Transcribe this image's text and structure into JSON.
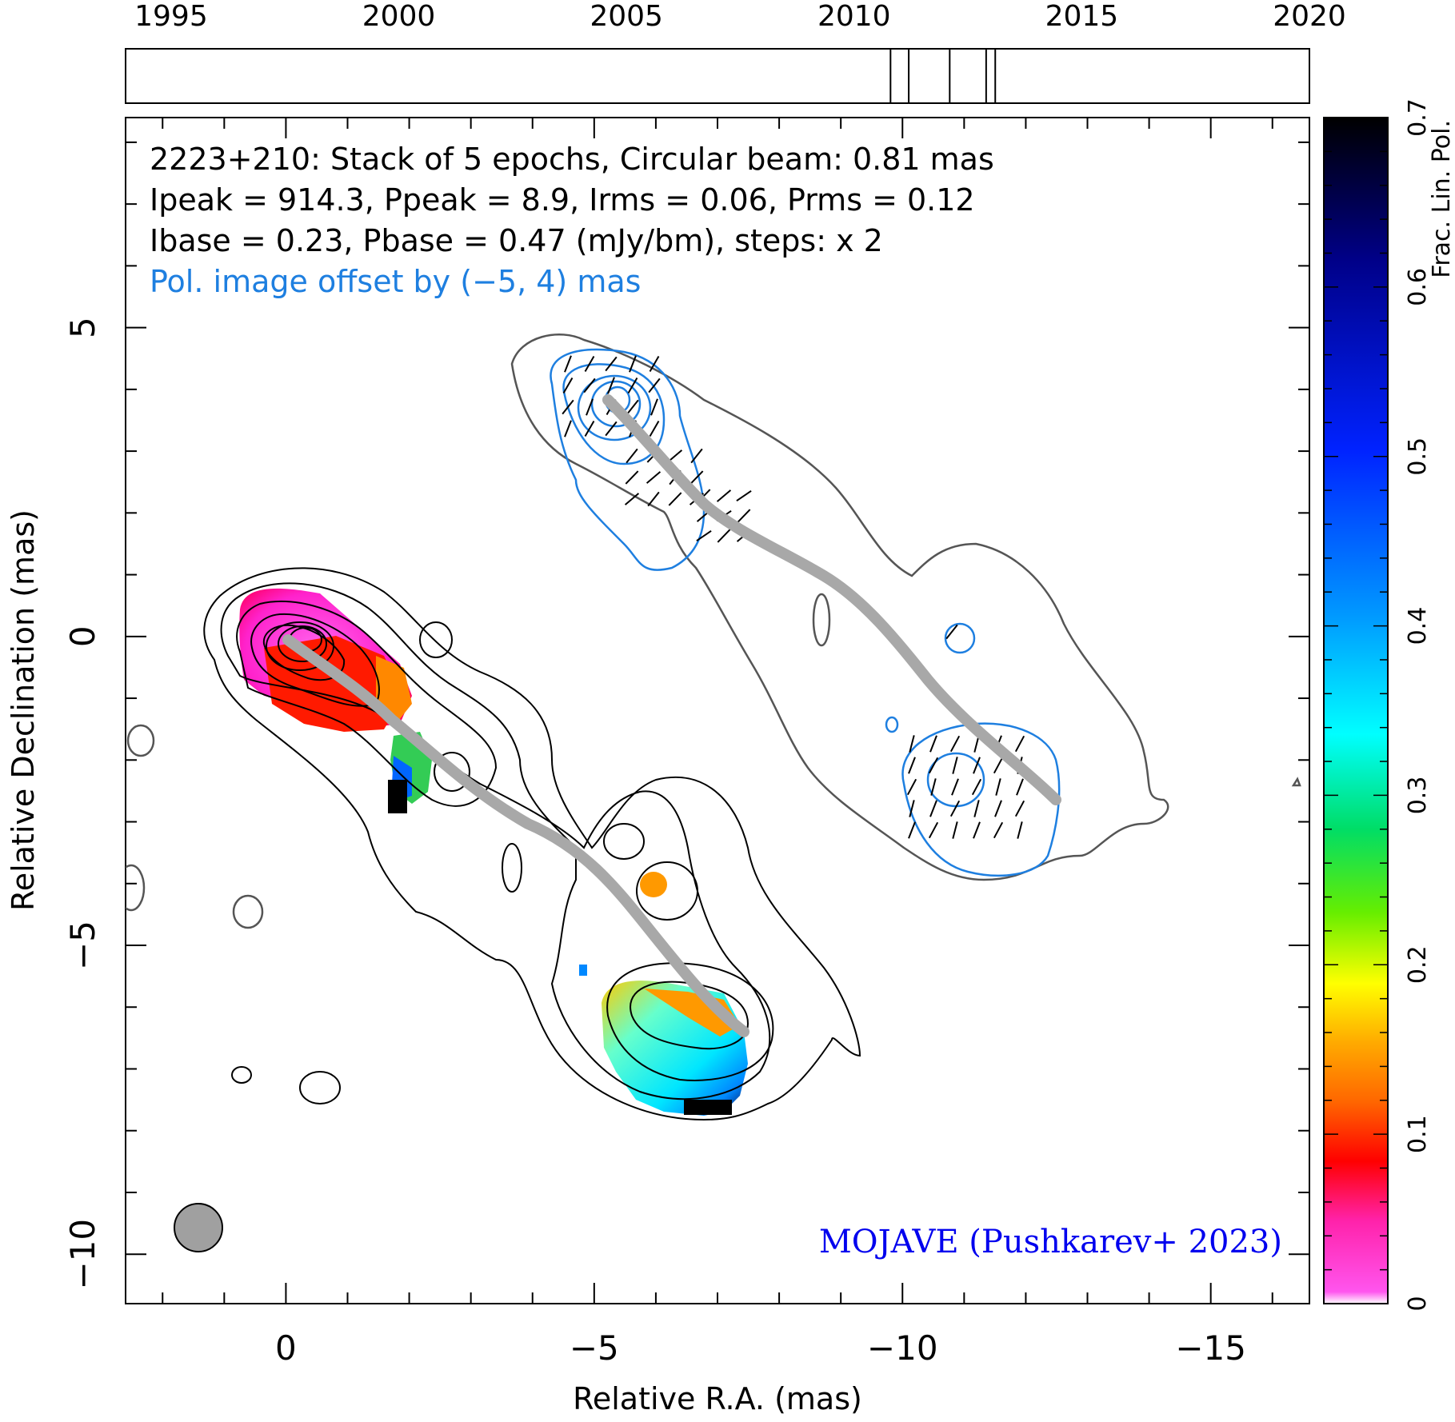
{
  "chart_data": {
    "type": "contour",
    "source": "2223+210",
    "info_lines": [
      "2223+210: Stack of 5 epochs, Circular beam: 0.81 mas",
      "Ipeak = 914.3, Ppeak = 8.9, Irms = 0.06, Prms = 0.12",
      "Ibase = 0.23, Pbase = 0.47 (mJy/bm), steps: x 2"
    ],
    "offset_note": "Pol. image offset by (−5, 4) mas",
    "credit": "MOJAVE (Pushkarev+ 2023)",
    "xlabel": "Relative R.A. (mas)",
    "ylabel": "Relative Declination (mas)",
    "xlim": [
      2.6,
      -16.6
    ],
    "ylim": [
      -10.8,
      8.4
    ],
    "xticks": [
      0,
      -5,
      -10,
      -15
    ],
    "xtick_labels": [
      "0",
      "−5",
      "−10",
      "−15"
    ],
    "yticks": [
      5,
      0,
      -5,
      -10
    ],
    "ytick_labels": [
      "5",
      "0",
      "−5",
      "−10"
    ],
    "grid": false,
    "beam": {
      "ra": 1.45,
      "dec": -9.5,
      "diameter_mas": 0.81
    },
    "timeline": {
      "xlim": [
        1994.0,
        2020.0
      ],
      "ticks": [
        1995,
        2000,
        2005,
        2010,
        2015,
        2020
      ],
      "tick_labels": [
        "1995",
        "2000",
        "2005",
        "2010",
        "2015",
        "2020"
      ],
      "epochs": [
        2010.8,
        2011.2,
        2012.1,
        2012.9,
        2013.1
      ]
    },
    "colorbar": {
      "label": "Frac. Lin. Pol.",
      "range": [
        0,
        0.7
      ],
      "ticks": [
        0,
        0.1,
        0.2,
        0.3,
        0.4,
        0.5,
        0.6,
        0.7
      ],
      "tick_labels": [
        "0",
        "0.1",
        "0.2",
        "0.3",
        "0.4",
        "0.5",
        "0.6",
        "0.7"
      ],
      "stops": [
        "#ffffff",
        "#ff55ee",
        "#ff22aa",
        "#ff0000",
        "#ff6600",
        "#ffaa00",
        "#ffff00",
        "#66ee00",
        "#00dd66",
        "#00ffff",
        "#0099ff",
        "#0022ff",
        "#000088",
        "#000000"
      ]
    },
    "colors": {
      "total_intensity_contour": "#000000",
      "polarization_contour": "#1e7fe0",
      "ridge_line": "#a8a8a8",
      "lowest_contour": "#555555",
      "note_color": "#1e7fe0",
      "credit_color": "#0000ee"
    }
  }
}
